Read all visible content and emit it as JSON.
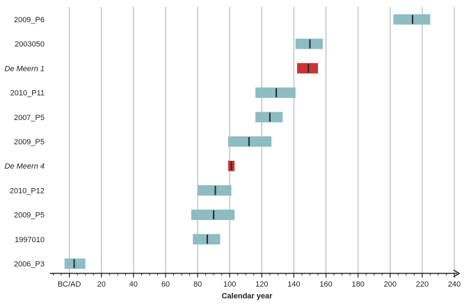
{
  "chart_data": {
    "type": "range-bar",
    "xlabel": "Calendar year",
    "xlim": [
      -12,
      240
    ],
    "x_ticks": [
      {
        "value": 0,
        "label": "BC/AD"
      },
      {
        "value": 20,
        "label": "20"
      },
      {
        "value": 40,
        "label": "40"
      },
      {
        "value": 60,
        "label": "60"
      },
      {
        "value": 80,
        "label": "80"
      },
      {
        "value": 100,
        "label": "100"
      },
      {
        "value": 120,
        "label": "120"
      },
      {
        "value": 140,
        "label": "140"
      },
      {
        "value": 160,
        "label": "160"
      },
      {
        "value": 180,
        "label": "180"
      },
      {
        "value": 200,
        "label": "200"
      },
      {
        "value": 220,
        "label": "220"
      },
      {
        "value": 240,
        "label": "240"
      }
    ],
    "minor_tick_step": 5,
    "grid": "vertical",
    "categories": [
      "2009_P6",
      "2003050",
      "De Meern 1",
      "2010_P11",
      "2007_P5",
      "2009_P5",
      "De Meern 4",
      "2010_P12",
      "2009_P5",
      "1997010",
      "2006_P3"
    ],
    "italic_categories": [
      "De Meern 1",
      "De Meern 4"
    ],
    "ranges": [
      {
        "start": 202,
        "end": 225,
        "mid": 214,
        "kind": "ring"
      },
      {
        "start": 141,
        "end": 158,
        "mid": 150,
        "kind": "ring"
      },
      {
        "start": 142,
        "end": 155,
        "mid": 149,
        "kind": "ship"
      },
      {
        "start": 116,
        "end": 141,
        "mid": 129,
        "kind": "ring"
      },
      {
        "start": 116,
        "end": 133,
        "mid": 125,
        "kind": "ring"
      },
      {
        "start": 99,
        "end": 126,
        "mid": 112,
        "kind": "ring"
      },
      {
        "start": 99,
        "end": 103,
        "mid": 101,
        "kind": "ship"
      },
      {
        "start": 80,
        "end": 101,
        "mid": 91,
        "kind": "ring"
      },
      {
        "start": 76,
        "end": 103,
        "mid": 90,
        "kind": "ring"
      },
      {
        "start": 77,
        "end": 94,
        "mid": 86,
        "kind": "ring"
      },
      {
        "start": -3,
        "end": 10,
        "mid": 3,
        "kind": "ring"
      }
    ],
    "colors": {
      "ring": "#8dbcc1",
      "ship": "#cc3333",
      "mid_line": "#1c2a38",
      "grid": "#b5b5b5",
      "axis": "#222222"
    }
  }
}
